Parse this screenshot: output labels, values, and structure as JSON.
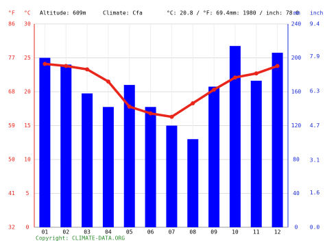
{
  "header": {
    "altitude": "Altitude: 609m",
    "climate": "Climate: Cfa",
    "temperature": "°C: 20.8 / °F: 69.4",
    "precipitation": "mm: 1980 / inch: 78.0"
  },
  "chart_data": {
    "type": "bar-line",
    "units": {
      "f": "°F",
      "c": "°C",
      "mm": "mm",
      "inch": "inch"
    },
    "categories": [
      "01",
      "02",
      "03",
      "04",
      "05",
      "06",
      "07",
      "08",
      "09",
      "10",
      "11",
      "12"
    ],
    "series": [
      {
        "type": "bar",
        "axis": "y2",
        "color": "#0000ff",
        "values": [
          200,
          192,
          158,
          142,
          168,
          142,
          120,
          104,
          166,
          214,
          173,
          206
        ]
      },
      {
        "type": "line",
        "color": "#e8261b",
        "values": [
          24.1,
          23.8,
          23.3,
          21.5,
          17.8,
          16.8,
          16.3,
          18.3,
          20.3,
          22.1,
          22.7,
          23.8
        ]
      }
    ],
    "ylim": [
      0,
      30
    ],
    "yticks": [
      0,
      5,
      10,
      15,
      20,
      25,
      30
    ],
    "y2lim": [
      0,
      240
    ],
    "y2ticks": [
      0,
      40,
      80,
      120,
      160,
      200,
      240
    ],
    "y3lim": [
      32,
      86
    ],
    "y3ticks": [
      32,
      41,
      50,
      59,
      68,
      77,
      86
    ],
    "y4lim": [
      0,
      9.4
    ],
    "y4ticks": [
      {
        "value": 0,
        "label": "0.0"
      },
      1.6,
      3.1,
      4.7,
      6.3,
      7.9,
      9.4
    ],
    "grid": true
  },
  "footer": {
    "copyright": "Copyright: CLIMATE-DATA.ORG"
  }
}
